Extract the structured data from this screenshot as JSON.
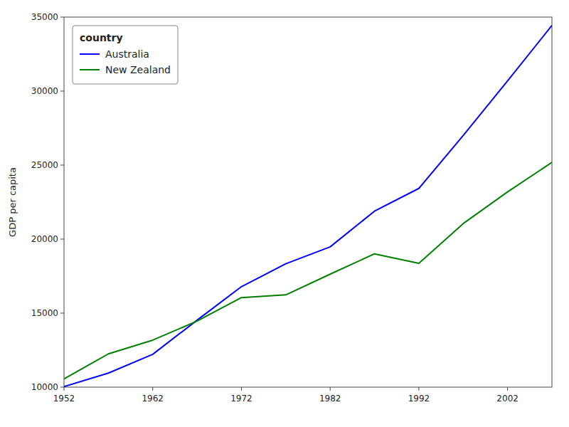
{
  "chart_data": {
    "type": "line",
    "ylabel": "GDP per capita",
    "legend_title": "country",
    "x": [
      1952,
      1957,
      1962,
      1967,
      1972,
      1977,
      1982,
      1987,
      1992,
      1997,
      2002,
      2007
    ],
    "series": [
      {
        "name": "Australia",
        "color": "blue",
        "values": [
          10039.6,
          10949.65,
          12217.23,
          14526.12,
          16788.63,
          18334.2,
          19477.01,
          21888.89,
          23424.77,
          26997.94,
          30687.75,
          34435.37
        ]
      },
      {
        "name": "New Zealand",
        "color": "green",
        "values": [
          10556.58,
          12247.4,
          13175.68,
          14463.92,
          16046.04,
          16233.72,
          17632.41,
          19007.19,
          18363.32,
          21050.41,
          23189.8,
          25185.01
        ]
      }
    ],
    "xlim": [
      1952,
      2007
    ],
    "ylim": [
      10000,
      35000
    ],
    "xticks": [
      1952,
      1962,
      1972,
      1982,
      1992,
      2002
    ],
    "yticks": [
      10000,
      15000,
      20000,
      25000,
      30000,
      35000
    ],
    "grid": false,
    "legend": "upper left"
  }
}
